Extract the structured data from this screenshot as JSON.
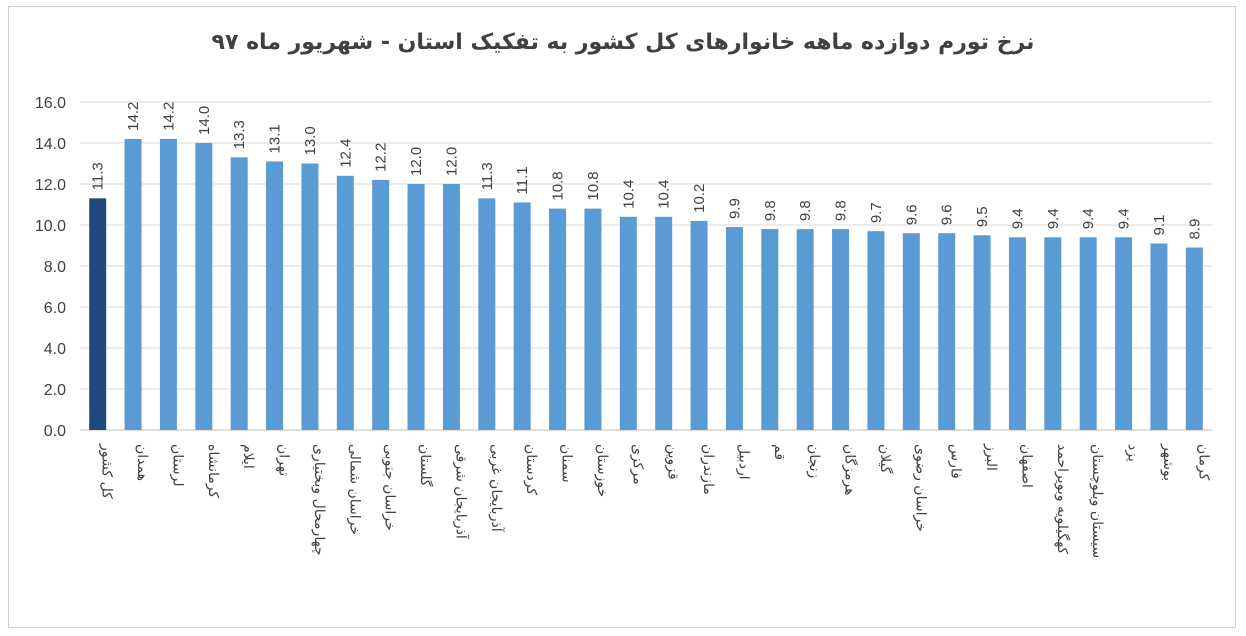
{
  "chart_data": {
    "type": "bar",
    "title": "نرخ تورم دوازده ماهه خانوارهای کل کشور به تفکیک استان - شهریور ماه ۹۷",
    "xlabel": "",
    "ylabel": "",
    "ylim": [
      0,
      16
    ],
    "yticks": [
      "0.0",
      "2.0",
      "4.0",
      "6.0",
      "8.0",
      "10.0",
      "12.0",
      "14.0",
      "16.0"
    ],
    "grid": true,
    "legend": "none",
    "categories": [
      "کل کشور",
      "همدان",
      "لرستان",
      "کرمانشاه",
      "ایلام",
      "تهران",
      "چهارمحال وبختیاری",
      "خراسان شمالی",
      "خراسان جنوبی",
      "گلستان",
      "آذربایجان شرقی",
      "آذربایجان غربی",
      "کردستان",
      "سمنان",
      "خوزستان",
      "مرکزی",
      "قزوین",
      "مازندران",
      "اردبیل",
      "قم",
      "زنجان",
      "هرمزگان",
      "گیلان",
      "خراسان رضوی",
      "فارس",
      "البرز",
      "اصفهان",
      "کهگیلویه وبویراحمد",
      "سیستان وبلوچستان",
      "یزد",
      "بوشهر",
      "کرمان"
    ],
    "values": [
      11.3,
      14.2,
      14.2,
      14.0,
      13.3,
      13.1,
      13.0,
      12.4,
      12.2,
      12.0,
      12.0,
      11.3,
      11.1,
      10.8,
      10.8,
      10.4,
      10.4,
      10.2,
      9.9,
      9.8,
      9.8,
      9.8,
      9.7,
      9.6,
      9.6,
      9.5,
      9.4,
      9.4,
      9.4,
      9.4,
      9.1,
      8.9
    ],
    "data_labels": [
      "11.3",
      "14.2",
      "14.2",
      "14.0",
      "13.3",
      "13.1",
      "13.0",
      "12.4",
      "12.2",
      "12.0",
      "12.0",
      "11.3",
      "11.1",
      "10.8",
      "10.8",
      "10.4",
      "10.4",
      "10.2",
      "9.9",
      "9.8",
      "9.8",
      "9.8",
      "9.7",
      "9.6",
      "9.6",
      "9.5",
      "9.4",
      "9.4",
      "9.4",
      "9.4",
      "9.1",
      "8.9"
    ],
    "colors": {
      "highlight": "#1f497d",
      "bar": "#5b9bd5",
      "grid": "#d9d9d9",
      "axis": "#bfbfbf"
    }
  }
}
